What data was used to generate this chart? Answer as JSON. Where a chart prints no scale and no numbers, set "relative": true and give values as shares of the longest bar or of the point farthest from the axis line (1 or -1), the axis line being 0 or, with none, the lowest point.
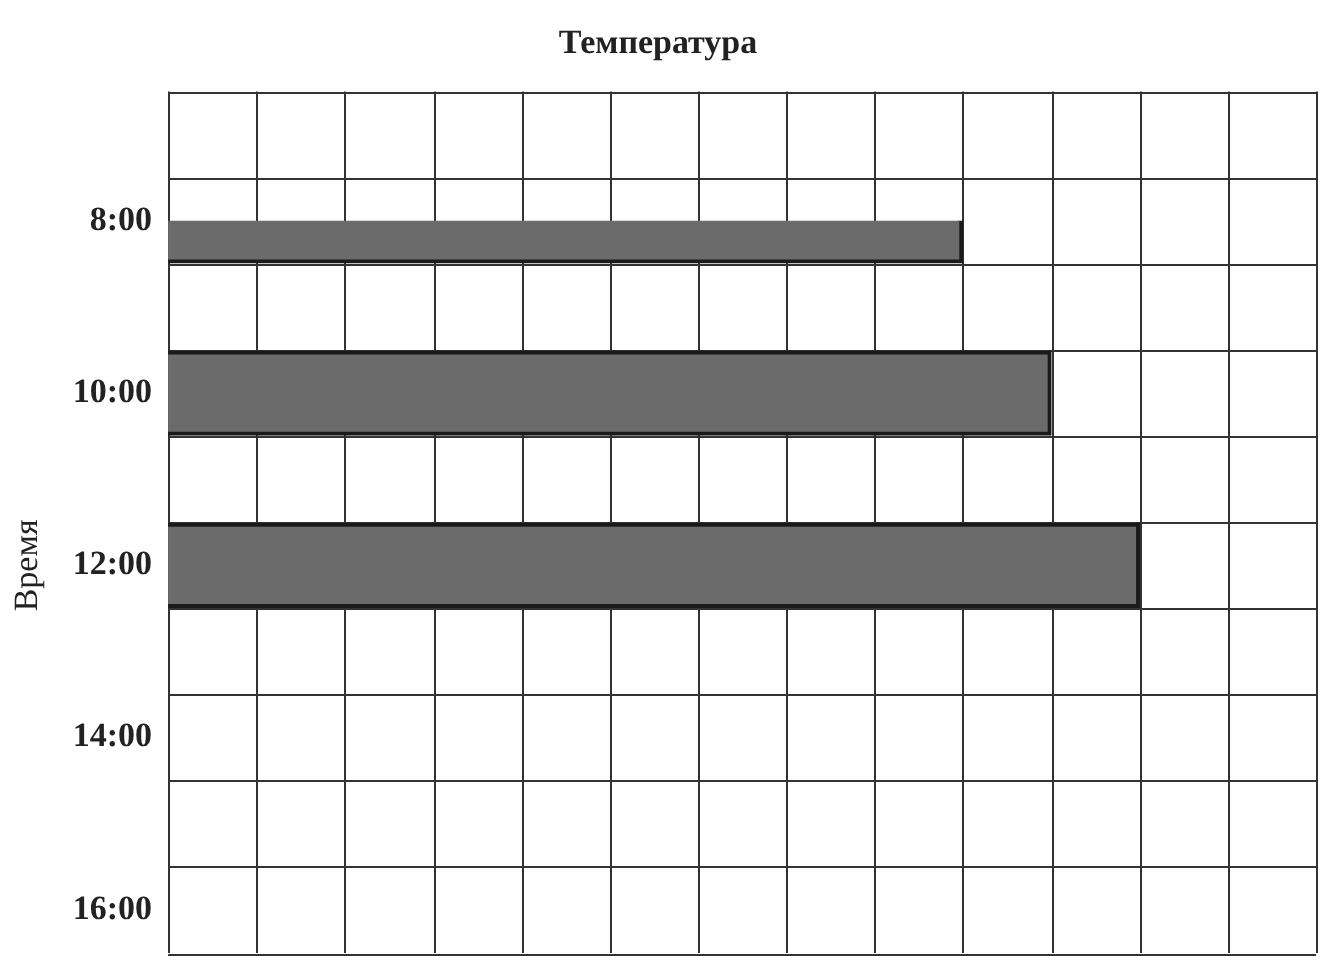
{
  "chart_data": {
    "type": "bar",
    "orientation": "horizontal",
    "title": "Температура",
    "ylabel": "Время",
    "categories": [
      "8:00",
      "10:00",
      "12:00",
      "14:00",
      "16:00"
    ],
    "values": [
      0.818,
      0.909,
      1,
      null,
      null
    ],
    "color": "#6b6b6b",
    "relative": true,
    "grid": true
  }
}
